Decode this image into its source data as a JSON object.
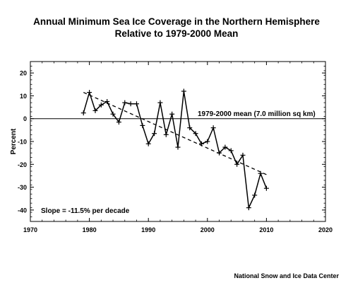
{
  "chart_data": {
    "type": "line",
    "title_lines": [
      "Annual Minimum Sea Ice Coverage in the Northern Hemisphere",
      "Relative to 1979-2000 Mean"
    ],
    "xlabel": "",
    "ylabel": "Percent",
    "xlim": [
      1970,
      2020
    ],
    "ylim": [
      -45,
      25
    ],
    "xticks": [
      1970,
      1980,
      1990,
      2000,
      2010,
      2020
    ],
    "yticks": [
      20,
      10,
      0,
      -10,
      -20,
      -30,
      -40
    ],
    "series": [
      {
        "x": [
          1979,
          1980,
          1981,
          1982,
          1983,
          1984,
          1985,
          1986,
          1987,
          1988,
          1989,
          1990,
          1991,
          1992,
          1993,
          1994,
          1995,
          1996,
          1997,
          1998,
          1999,
          2000,
          2001,
          2002,
          2003,
          2004,
          2005,
          2006,
          2007,
          2008,
          2009,
          2010
        ],
        "values": [
          2.5,
          11.5,
          3.5,
          6,
          7.5,
          2,
          -1.5,
          7,
          6.5,
          6.5,
          -3,
          -11,
          -6.5,
          7,
          -7,
          2,
          -12.5,
          12,
          -4,
          -6.5,
          -11,
          -10,
          -4,
          -15,
          -12.5,
          -14,
          -20,
          -16,
          -39,
          -33.5,
          -24,
          -30.5
        ]
      }
    ],
    "trend": {
      "x": [
        1979,
        2010
      ],
      "values": [
        11.5,
        -24.5
      ],
      "style": "dashed"
    },
    "reference_line": {
      "y": 0,
      "label": "1979-2000 mean (7.0 million sq km)"
    },
    "annotation": "Slope = -11.5% per decade",
    "grid": false,
    "colors": {
      "line": "#000000",
      "axis": "#000000"
    }
  },
  "credit": "National Snow and Ice Data Center"
}
